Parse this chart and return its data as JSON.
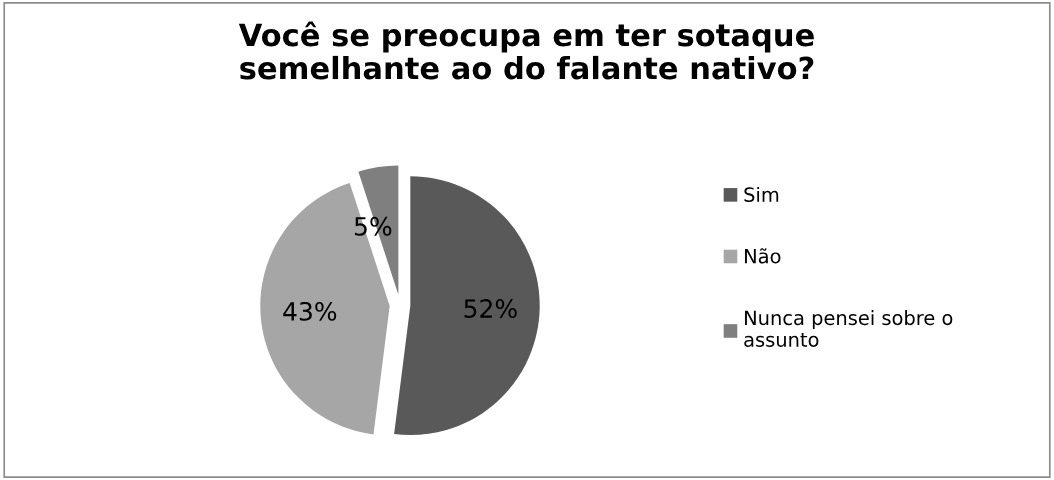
{
  "chart_data": {
    "type": "pie",
    "title": "Você se preocupa em ter sotaque\nsemelhante ao do falante nativo?",
    "categories": [
      "Sim",
      "Não",
      "Nunca pensei sobre o\nassunto"
    ],
    "values": [
      52,
      43,
      5
    ],
    "colors": [
      "#595959",
      "#a6a6a6",
      "#7f7f7f"
    ],
    "value_labels": [
      "52%",
      "43%",
      "5%"
    ],
    "legend": "right"
  }
}
